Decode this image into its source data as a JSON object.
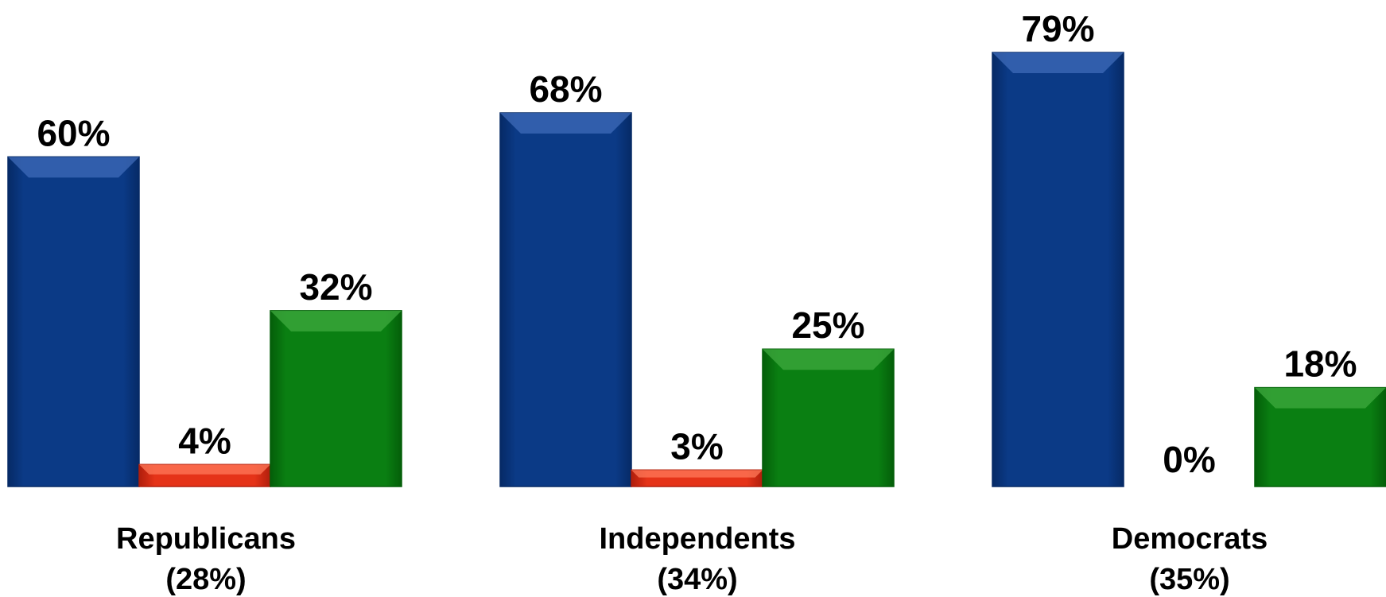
{
  "chart_data": {
    "type": "bar",
    "categories": [
      "Republicans",
      "Independents",
      "Democrats"
    ],
    "category_shares": [
      "(28%)",
      "(34%)",
      "(35%)"
    ],
    "series": [
      {
        "values": [
          60,
          68,
          79
        ],
        "labels": [
          "60%",
          "68%",
          "79%"
        ]
      },
      {
        "values": [
          4,
          3,
          0
        ],
        "labels": [
          "4%",
          "3%",
          "0%"
        ]
      },
      {
        "values": [
          32,
          25,
          18
        ],
        "labels": [
          "32%",
          "25%",
          "18%"
        ]
      }
    ],
    "ylim": [
      0,
      79
    ],
    "grid": false,
    "legend": "none",
    "title": "",
    "xlabel": "",
    "ylabel": ""
  },
  "colors": {
    "series": [
      "#0b3a86",
      "#e53318",
      "#0a7f12"
    ],
    "series_light": [
      "#3f6bb8",
      "#ff7a5a",
      "#3faa3f"
    ],
    "series_dark": [
      "#062a66",
      "#b01e0c",
      "#045e09"
    ]
  }
}
